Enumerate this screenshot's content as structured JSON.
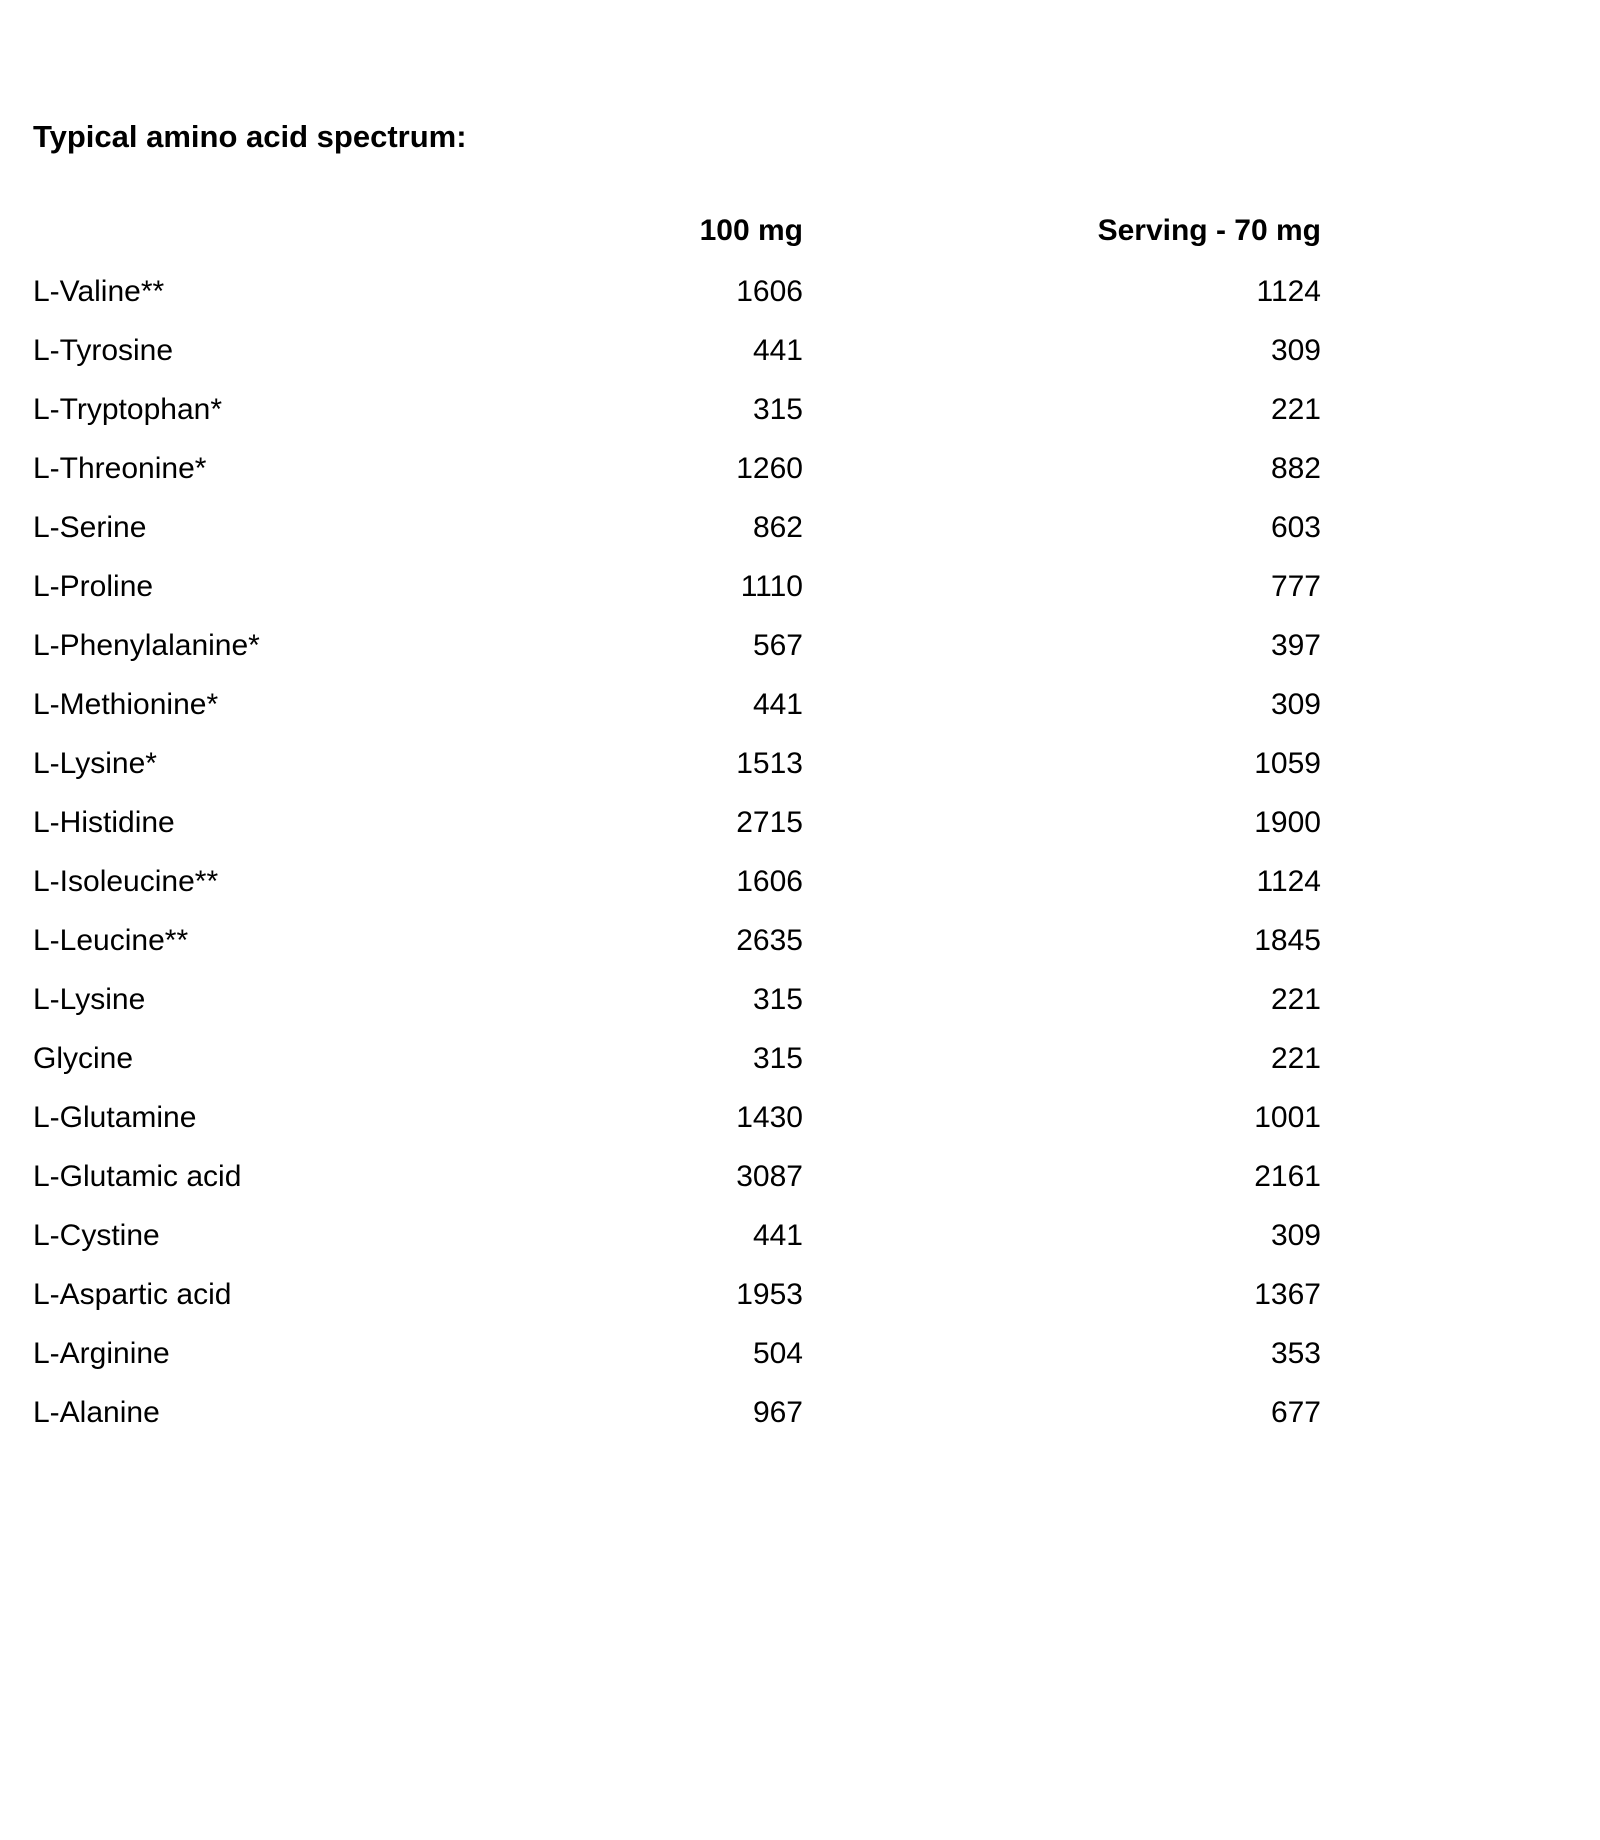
{
  "page": {
    "title": "Typical amino acid spectrum:"
  },
  "table": {
    "headers": {
      "name": "",
      "per_100mg": "100 mg",
      "per_serving": "Serving - 70 mg"
    },
    "rows": [
      {
        "name": "L-Valine**",
        "per_100mg": "1606",
        "per_serving": "1124"
      },
      {
        "name": "L-Tyrosine",
        "per_100mg": "441",
        "per_serving": "309"
      },
      {
        "name": "L-Tryptophan*",
        "per_100mg": "315",
        "per_serving": "221"
      },
      {
        "name": "L-Threonine*",
        "per_100mg": "1260",
        "per_serving": "882"
      },
      {
        "name": "L-Serine",
        "per_100mg": "862",
        "per_serving": "603"
      },
      {
        "name": "L-Proline",
        "per_100mg": "1110",
        "per_serving": "777"
      },
      {
        "name": "L-Phenylalanine*",
        "per_100mg": "567",
        "per_serving": "397"
      },
      {
        "name": "L-Methionine*",
        "per_100mg": "441",
        "per_serving": "309"
      },
      {
        "name": "L-Lysine*",
        "per_100mg": "1513",
        "per_serving": "1059"
      },
      {
        "name": "L-Histidine",
        "per_100mg": "2715",
        "per_serving": "1900"
      },
      {
        "name": "L-Isoleucine**",
        "per_100mg": "1606",
        "per_serving": "1124"
      },
      {
        "name": "L-Leucine**",
        "per_100mg": "2635",
        "per_serving": "1845"
      },
      {
        "name": "L-Lysine",
        "per_100mg": "315",
        "per_serving": "221"
      },
      {
        "name": "Glycine",
        "per_100mg": "315",
        "per_serving": "221"
      },
      {
        "name": "L-Glutamine",
        "per_100mg": "1430",
        "per_serving": "1001"
      },
      {
        "name": "L-Glutamic acid",
        "per_100mg": "3087",
        "per_serving": "2161"
      },
      {
        "name": "L-Cystine",
        "per_100mg": "441",
        "per_serving": "309"
      },
      {
        "name": "L-Aspartic acid",
        "per_100mg": "1953",
        "per_serving": "1367"
      },
      {
        "name": "L-Arginine",
        "per_100mg": "504",
        "per_serving": "353"
      },
      {
        "name": "L-Alanine",
        "per_100mg": "967",
        "per_serving": "677"
      }
    ]
  },
  "colors": {
    "text": "#000000",
    "background": "#ffffff"
  }
}
